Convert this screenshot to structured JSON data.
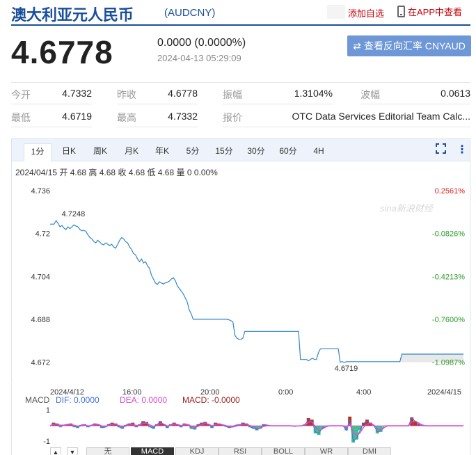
{
  "header": {
    "title": "澳大利亚元人民币",
    "code": "(AUDCNY)",
    "add_watch": "添加自选",
    "view_app": "在APP中查看"
  },
  "quote": {
    "price": "4.6778",
    "change": "0.0000 (0.0000%)",
    "time": "2024-04-13 05:29:09",
    "reverse_button": "查看反向汇率 CNYAUD"
  },
  "stats": {
    "open_label": "今开",
    "open": "4.7332",
    "prev_close_label": "昨收",
    "prev_close": "4.6778",
    "amplitude_label": "振幅",
    "amplitude": "1.3104%",
    "wave_label": "波幅",
    "wave": "0.0613",
    "low_label": "最低",
    "low": "4.6719",
    "high_label": "最高",
    "high": "4.7332",
    "quoter_label": "报价",
    "quoter": "OTC Data Services Editorial Team Calc..."
  },
  "tabs": [
    "1分",
    "日K",
    "周K",
    "月K",
    "年K",
    "5分",
    "15分",
    "30分",
    "60分",
    "4H"
  ],
  "quote_line": "2024/04/15 开 4.68 高 4.68 收 4.68 低 4.68 量 0 0.00%",
  "macd_legend": {
    "name": "MACD",
    "dif": "DIF: 0.0000",
    "dea": "DEA: 0.0000",
    "macd": "MACD: -0.0000"
  },
  "indicator_tabs": [
    "无",
    "MACD",
    "KDJ",
    "RSI",
    "BOLL",
    "WR",
    "DMI"
  ],
  "colors": {
    "line": "#2f86c9",
    "pos": "#e02020",
    "neg": "#2a9a2a",
    "dif": "#3f6fde",
    "dea": "#d24cd2",
    "macd": "#a02020"
  },
  "chart_data": {
    "type": "line",
    "watermark": "sina新浪财经",
    "y_ticks": [
      "4.736",
      "4.72",
      "4.704",
      "4.688",
      "4.672"
    ],
    "right_ticks": [
      "0.2561%",
      "-0.0826%",
      "-0.4213%",
      "-0.7600%",
      "-1.0987%"
    ],
    "x_ticks": [
      "2024/4/12",
      "16:00",
      "20:00",
      "0:00",
      "4:00",
      "2024/4/15"
    ],
    "ylim": [
      4.668,
      4.736
    ],
    "annotations": [
      {
        "label": "4.7248",
        "x": 3,
        "y": 4.7248
      },
      {
        "label": "4.6719",
        "x": 148,
        "y": 4.6719
      }
    ],
    "series": [
      {
        "values": [
          4.7235,
          4.7235,
          4.7235,
          4.7248,
          4.7238,
          4.7225,
          4.723,
          4.722,
          4.7215,
          4.7225,
          4.7218,
          4.7225,
          4.7232,
          4.7228,
          4.7225,
          4.7215,
          4.721,
          4.7212,
          4.7208,
          4.7195,
          4.7185,
          4.718,
          4.717,
          4.7165,
          4.7175,
          4.7168,
          4.716,
          4.7158,
          4.7165,
          4.716,
          4.7155,
          4.716,
          4.715,
          4.7145,
          4.716,
          4.7175,
          4.7185,
          4.718,
          4.717,
          4.7165,
          4.715,
          4.714,
          4.7125,
          4.712,
          4.7105,
          4.7095,
          4.7105,
          4.709,
          4.7095,
          4.708,
          4.707,
          4.7045,
          4.703,
          4.7015,
          4.701,
          4.702,
          4.7015,
          4.7012,
          4.7016,
          4.7018,
          4.7022,
          4.703,
          4.7035,
          4.7025,
          4.7005,
          4.6995,
          4.6985,
          4.6975,
          4.696,
          4.6945,
          4.6915,
          4.69,
          4.688,
          4.688,
          4.688,
          4.688,
          4.688,
          4.688,
          4.688,
          4.688,
          4.688,
          4.688,
          4.688,
          4.688,
          4.688,
          4.688,
          4.688,
          4.688,
          4.688,
          4.688,
          4.6878,
          4.6875,
          4.687,
          4.682,
          4.681,
          4.6805,
          4.6805,
          4.681,
          4.6835,
          4.6835,
          4.6835,
          4.6835,
          4.6835,
          4.6835,
          4.6835,
          4.6835,
          4.6835,
          4.6835,
          4.6835,
          4.6835,
          4.6835,
          4.6835,
          4.6835,
          4.6835,
          4.6835,
          4.6835,
          4.6835,
          4.6835,
          4.6835,
          4.6835,
          4.6835,
          4.6835,
          4.6835,
          4.6835,
          4.6835,
          4.6835,
          4.673,
          4.673,
          4.673,
          4.673,
          4.6725,
          4.673,
          4.6735,
          4.673,
          4.673,
          4.6755,
          4.677,
          4.677,
          4.677,
          4.677,
          4.677,
          4.677,
          4.677,
          4.677,
          4.677,
          4.677,
          4.672,
          4.6722,
          4.6719,
          4.6722,
          4.6722,
          4.6722,
          4.6722,
          4.6722,
          4.6722,
          4.6722,
          4.6722,
          4.6722,
          4.6722,
          4.6722,
          4.6722,
          4.6722,
          4.6722,
          4.6722,
          4.6722,
          4.6722,
          4.6722,
          4.6722,
          4.6722,
          4.6722,
          4.6722,
          4.6722,
          4.6722,
          4.6722,
          4.6722,
          4.6722,
          4.6722,
          4.675,
          4.675,
          4.675,
          4.675,
          4.675,
          4.675,
          4.675,
          4.675,
          4.675,
          4.675,
          4.675,
          4.675,
          4.675,
          4.675,
          4.675,
          4.675,
          4.675,
          4.675,
          4.675,
          4.675,
          4.675,
          4.675,
          4.675,
          4.675,
          4.675,
          4.675,
          4.675,
          4.675,
          4.675,
          4.675,
          4.675,
          4.675
        ]
      }
    ],
    "macd": {
      "y_ticks": [
        "1",
        "-1"
      ],
      "bars": [
        0,
        0.2,
        0.15,
        -0.1,
        0.05,
        0.1,
        0.15,
        -0.1,
        -0.15,
        0.05,
        0.1,
        -0.1,
        0.05,
        0.15,
        0.1,
        -0.15,
        -0.1,
        0.1,
        0.2,
        0.15,
        -0.1,
        -0.2,
        0.05,
        0.15,
        0.2,
        -0.1,
        0.1,
        0.3,
        0.25,
        -0.1,
        -0.2,
        0.1,
        0.3,
        0.1,
        -0.15,
        0.1,
        0.2,
        0.1,
        -0.1,
        0.15,
        0.1,
        -0.2,
        -0.25,
        0.1,
        0.2,
        0.25,
        0.1,
        -0.15,
        0.2,
        0.15,
        0.05,
        -0.05,
        -0.15,
        -0.1,
        0.05,
        0.1,
        0.2,
        0.15,
        -0.1,
        -0.2,
        -0.3,
        -0.2,
        0.1,
        0.05,
        0,
        0,
        0,
        0,
        0,
        0,
        0,
        -0.05,
        0,
        0,
        0.1,
        0.5,
        0.4,
        -0.5,
        -0.6,
        -0.2,
        0,
        0,
        0,
        0,
        0,
        0,
        -0.3,
        0.6,
        -1.1,
        -0.9,
        -0.3,
        0.2,
        0.4,
        0.2,
        0,
        -0.5,
        -0.4,
        0,
        0,
        0,
        0,
        0,
        0,
        0,
        0,
        0.55,
        0.3,
        0.1,
        0,
        0,
        0,
        0,
        0,
        0,
        0,
        0,
        0,
        0,
        0,
        0,
        0
      ],
      "dif": [
        0,
        0.15,
        0.1,
        -0.05,
        0.05,
        0.1,
        0.12,
        -0.05,
        -0.1,
        0.05,
        0.08,
        -0.08,
        0.05,
        0.12,
        0.1,
        -0.12,
        -0.1,
        0.1,
        0.15,
        0.12,
        -0.08,
        -0.15,
        0.05,
        0.12,
        0.15,
        -0.08,
        0.08,
        0.25,
        0.2,
        -0.08,
        -0.15,
        0.08,
        0.25,
        0.1,
        -0.12,
        0.08,
        0.15,
        0.08,
        -0.08,
        0.12,
        0.08,
        -0.15,
        -0.2,
        0.08,
        0.15,
        0.2,
        0.08,
        -0.12,
        0.15,
        0.12,
        0.05,
        -0.05,
        -0.12,
        -0.08,
        0.05,
        0.08,
        0.15,
        0.12,
        -0.08,
        -0.15,
        -0.25,
        -0.15,
        0.08,
        0.05,
        0,
        0,
        0,
        0,
        0,
        0,
        0,
        -0.05,
        0,
        0,
        0.1,
        0.4,
        0.3,
        -0.4,
        -0.5,
        -0.15,
        0,
        0,
        0,
        0,
        0,
        0,
        -0.3,
        0.4,
        -1.0,
        -0.8,
        -0.3,
        0.15,
        0.3,
        0.15,
        0,
        -0.4,
        -0.35,
        0,
        0,
        0,
        0,
        0,
        0,
        0,
        0,
        0.5,
        0.3,
        0.1,
        0,
        0,
        0,
        0,
        0,
        0,
        0,
        0,
        0,
        0,
        0,
        0,
        0
      ],
      "dea": [
        0,
        0.08,
        0.1,
        0.04,
        0.04,
        0.06,
        0.09,
        0.03,
        -0.03,
        0.0,
        0.04,
        -0.01,
        0.01,
        0.07,
        0.09,
        -0.02,
        -0.06,
        0.02,
        0.09,
        0.11,
        0.02,
        -0.07,
        -0.02,
        0.06,
        0.11,
        0.02,
        0.04,
        0.15,
        0.18,
        0.05,
        -0.06,
        0.02,
        0.14,
        0.12,
        -0.01,
        0.03,
        0.1,
        0.09,
        0.01,
        0.07,
        0.08,
        -0.04,
        -0.13,
        -0.03,
        0.07,
        0.14,
        0.11,
        -0.01,
        0.08,
        0.11,
        0.08,
        0.01,
        -0.07,
        -0.08,
        -0.02,
        0.04,
        0.1,
        0.11,
        0.02,
        -0.07,
        -0.17,
        -0.16,
        -0.04,
        0.01,
        0.0,
        0,
        0,
        0,
        0,
        0,
        0,
        -0.03,
        -0.01,
        0,
        0.05,
        0.23,
        0.27,
        -0.07,
        -0.3,
        -0.22,
        -0.08,
        0,
        0,
        0,
        0,
        0,
        -0.15,
        0.12,
        -0.45,
        -0.65,
        -0.45,
        -0.1,
        0.12,
        0.14,
        0.05,
        -0.2,
        -0.3,
        -0.12,
        0,
        0,
        0,
        0,
        0,
        0,
        0,
        0.25,
        0.3,
        0.18,
        0.06,
        0,
        0,
        0,
        0,
        0,
        0,
        0,
        0,
        0,
        0,
        0,
        0
      ]
    }
  }
}
